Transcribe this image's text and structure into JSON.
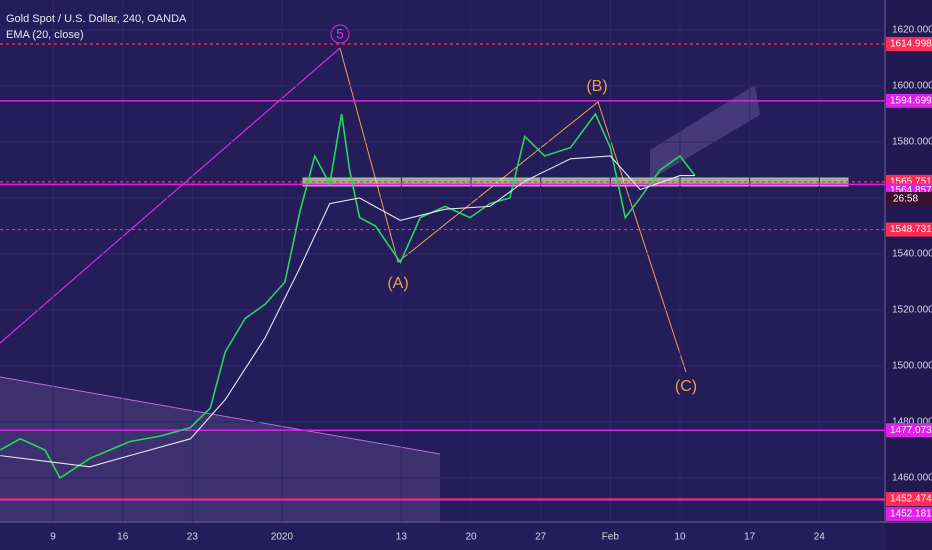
{
  "chart_data": {
    "type": "line",
    "title": "Gold Spot / U.S. Dollar, 240, OANDA",
    "indicator": "EMA (20, close)",
    "xlim": [
      2.67,
      91.6
    ],
    "ylim": [
      1444.3,
      1630.7
    ],
    "xticks": [
      {
        "value": 8,
        "label": "9"
      },
      {
        "value": 15,
        "label": "16"
      },
      {
        "value": 22,
        "label": "23"
      },
      {
        "value": 31,
        "label": "2020"
      },
      {
        "value": 43,
        "label": "13"
      },
      {
        "value": 50,
        "label": "20"
      },
      {
        "value": 57,
        "label": "27"
      },
      {
        "value": 64,
        "label": "Feb"
      },
      {
        "value": 71,
        "label": "10"
      },
      {
        "value": 78,
        "label": "17"
      },
      {
        "value": 85,
        "label": "24"
      }
    ],
    "yticks": [
      {
        "value": 1460,
        "label": "1460.000"
      },
      {
        "value": 1480,
        "label": "1480.000"
      },
      {
        "value": 1500,
        "label": "1500.000"
      },
      {
        "value": 1520,
        "label": "1520.000"
      },
      {
        "value": 1540,
        "label": "1540.000"
      },
      {
        "value": 1560,
        "label": "1560.000"
      },
      {
        "value": 1580,
        "label": "1580.000"
      },
      {
        "value": 1600,
        "label": "1600.000"
      },
      {
        "value": 1620,
        "label": "1620.000"
      }
    ],
    "series": [
      {
        "name": "Gold Spot / U.S. Dollar, 240, OANDA",
        "color": "#26d65a",
        "x": [
          2.7,
          4.7,
          7.2,
          8.7,
          11.7,
          13.7,
          15.7,
          18.8,
          21.8,
          23.8,
          25.3,
          27.3,
          29.3,
          31.3,
          32.8,
          34.3,
          35.8,
          37,
          37.8,
          38.8,
          40.4,
          42.9,
          44.9,
          47.4,
          49.9,
          51.9,
          53.9,
          55.4,
          57.4,
          60,
          62.5,
          64,
          65.5,
          67,
          69,
          71,
          72.5
        ],
        "values": [
          1470,
          1474,
          1470,
          1460,
          1467,
          1470,
          1473,
          1475,
          1478,
          1485,
          1505,
          1517,
          1522,
          1530,
          1555,
          1575,
          1565,
          1590,
          1570,
          1553,
          1550,
          1537,
          1553,
          1557,
          1553,
          1558,
          1560,
          1582,
          1575,
          1578,
          1590,
          1578,
          1553,
          1560,
          1570,
          1575,
          1568
        ]
      },
      {
        "name": "EMA (20, close)",
        "color": "#e6e6f0",
        "x": [
          2.7,
          7.2,
          11.7,
          15.7,
          21.8,
          25.3,
          29.3,
          32.8,
          35.8,
          38.8,
          42.9,
          47.4,
          51.9,
          55.4,
          60,
          64,
          67,
          71,
          72.5
        ],
        "values": [
          1468,
          1466,
          1464,
          1468,
          1474,
          1488,
          1510,
          1535,
          1558,
          1560,
          1552,
          1556,
          1557,
          1566,
          1574,
          1575,
          1563,
          1568,
          1568
        ]
      }
    ],
    "levels": [
      {
        "value": 1614.998,
        "color": "#ff2d55",
        "dash": true
      },
      {
        "value": 1594.699,
        "color": "#e020e8",
        "dash": false
      },
      {
        "value": 1565.751,
        "color": "#ff2d55",
        "dash": true
      },
      {
        "value": 1564.857,
        "color": "#e020e8",
        "dash": false
      },
      {
        "value": 1548.731,
        "color": "#ff2d55",
        "dash": true
      },
      {
        "value": 1477.073,
        "color": "#e020e8",
        "dash": false
      },
      {
        "value": 1452.474,
        "color": "#ff2d55",
        "dash": false
      },
      {
        "value": 1452.181,
        "color": "#e020e8",
        "dash": false
      }
    ],
    "countdown": "26:58",
    "annotations": [
      "5",
      "(A)",
      "(B)",
      "(C)"
    ]
  }
}
